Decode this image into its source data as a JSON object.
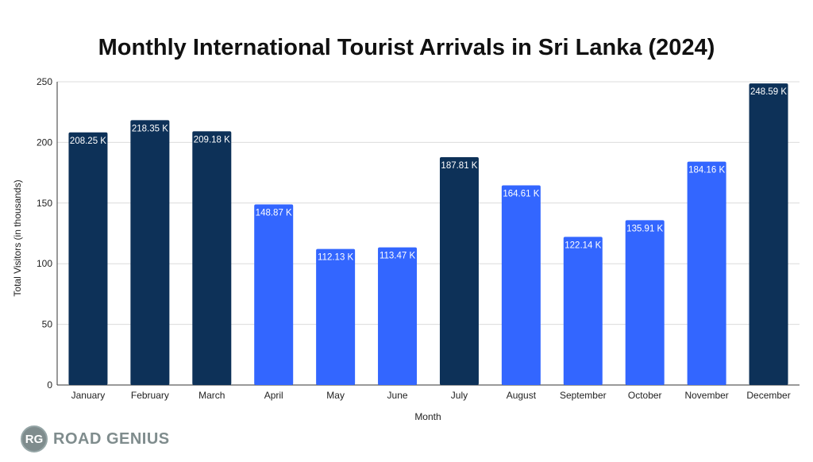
{
  "chart_data": {
    "type": "bar",
    "title": "Monthly International Tourist Arrivals in Sri Lanka (2024)",
    "xlabel": "Month",
    "ylabel": "Total Visitors (in thousands)",
    "ylim": [
      0,
      250
    ],
    "yticks": [
      0,
      50,
      100,
      150,
      200,
      250
    ],
    "grid": true,
    "categories": [
      "January",
      "February",
      "March",
      "April",
      "May",
      "June",
      "July",
      "August",
      "September",
      "October",
      "November",
      "December"
    ],
    "values": [
      208.25,
      218.35,
      209.18,
      148.87,
      112.13,
      113.47,
      187.81,
      164.61,
      122.14,
      135.91,
      184.16,
      248.59
    ],
    "data_labels": [
      "208.25 K",
      "218.35 K",
      "209.18 K",
      "148.87 K",
      "112.13 K",
      "113.47 K",
      "187.81 K",
      "164.61 K",
      "122.14 K",
      "135.91 K",
      "184.16 K",
      "248.59 K"
    ],
    "bar_colors": [
      "#0d3158",
      "#0d3158",
      "#0d3158",
      "#3366ff",
      "#3366ff",
      "#3366ff",
      "#0d3158",
      "#3366ff",
      "#3366ff",
      "#3366ff",
      "#3366ff",
      "#0d3158"
    ]
  },
  "logo": {
    "badge_text": "RG",
    "name": "ROAD GENIUS"
  }
}
